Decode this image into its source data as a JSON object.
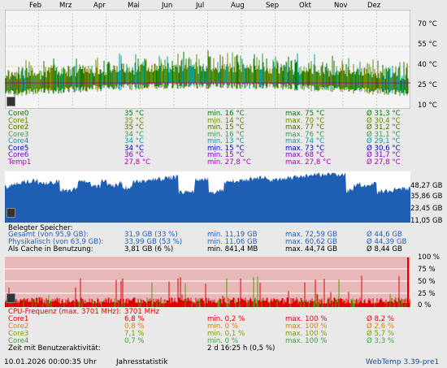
{
  "months": [
    "Feb",
    "Mrz",
    "Apr",
    "Mai",
    "Jun",
    "Jul",
    "Aug",
    "Sep",
    "Okt",
    "Nov",
    "Dez"
  ],
  "temp_axis": [
    "70 °C",
    "55 °C",
    "40 °C",
    "25 °C",
    "10 °C"
  ],
  "temp_rows": [
    {
      "name": "Core0",
      "cur": "35 °C",
      "min": "min. 16 °C",
      "max": "max. 75 °C",
      "avg": "Ø 31,3 °C",
      "color": "#008000"
    },
    {
      "name": "Core1",
      "cur": "35 °C",
      "min": "min. 14 °C",
      "max": "max. 70 °C",
      "avg": "Ø 30,4 °C",
      "color": "#6a8a00"
    },
    {
      "name": "Core2",
      "cur": "35 °C",
      "min": "min. 15 °C",
      "max": "max. 77 °C",
      "avg": "Ø 31,2 °C",
      "color": "#4a7000"
    },
    {
      "name": "Core3",
      "cur": "34 °C",
      "min": "min. 16 °C",
      "max": "max. 76 °C",
      "avg": "Ø 31,1 °C",
      "color": "#30a040"
    },
    {
      "name": "Core4",
      "cur": "34 °C",
      "min": "min. 13 °C",
      "max": "max. 74 °C",
      "avg": "Ø 29,1 °C",
      "color": "#00a0a0"
    },
    {
      "name": "Core5",
      "cur": "34 °C",
      "min": "min. 15 °C",
      "max": "max. 73 °C",
      "avg": "Ø 30,6 °C",
      "color": "#0000c0"
    },
    {
      "name": "Core6",
      "cur": "36 °C",
      "min": "min. 15 °C",
      "max": "max. 68 °C",
      "avg": "Ø 31,7 °C",
      "color": "#8000c0"
    },
    {
      "name": "Temp1",
      "cur": "27,8 °C",
      "min": "min. 27,8 °C",
      "max": "max. 27,8 °C",
      "avg": "Ø 27,8 °C",
      "color": "#b000b0"
    }
  ],
  "mem_axis": [
    "48,27 GB",
    "35,86 GB",
    "23,45 GB",
    "11,05 GB"
  ],
  "mem_header": "Belegter Speicher:",
  "mem_rows": [
    {
      "name": "Gesamt (von 95,9 GB):",
      "cur": "31,9 GB (33 %)",
      "min": "min. 11,19 GB",
      "max": "max. 72,59 GB",
      "avg": "Ø 44,6 GB",
      "color": "#2060c0"
    },
    {
      "name": "Physikalisch (von 63,9 GB):",
      "cur": "33,99 GB (53 %)",
      "min": "min. 11,06 GB",
      "max": "max. 60,62 GB",
      "avg": "Ø 44,39 GB",
      "color": "#2060c0"
    },
    {
      "name": "Als Cache in Benutzung:",
      "cur": "3,81 GB (6 %)",
      "min": "min. 841,4 MB",
      "max": "max. 44,74 GB",
      "avg": "Ø 8,44 GB",
      "color": "#000000"
    }
  ],
  "cpu_axis": [
    "100 %",
    "75 %",
    "50 %",
    "25 %",
    "0 %"
  ],
  "cpu_header": {
    "label": "CPU-Frequenz (max. 3701 MHz):",
    "value": "3701 MHz"
  },
  "cpu_rows": [
    {
      "name": "Core1",
      "cur": "6,8 %",
      "min": "min. 0,2 %",
      "max": "max. 100 %",
      "avg": "Ø 8,2 %",
      "color": "#e00000"
    },
    {
      "name": "Core2",
      "cur": "0,8 %",
      "min": "min. 0 %",
      "max": "max. 100 %",
      "avg": "Ø 2,6 %",
      "color": "#e08000"
    },
    {
      "name": "Core3",
      "cur": "7,1 %",
      "min": "min. 0,1 %",
      "max": "max. 100 %",
      "avg": "Ø 5,7 %",
      "color": "#80a000"
    },
    {
      "name": "Core4",
      "cur": "0,7 %",
      "min": "min. 0 %",
      "max": "max. 100 %",
      "avg": "Ø 3,3 %",
      "color": "#40a040"
    }
  ],
  "activity": {
    "label": "Zeit mit Benutzeraktivität:",
    "value": "2 d 16:25 h (0,5 %)"
  },
  "footer": {
    "timestamp": "10.01.2026 00:00:35 Uhr",
    "mode": "Jahresstatistik",
    "app": "WebTemp 3.39-pre1"
  },
  "colors": {
    "mem_fill": "#1e5fb4",
    "cpu_bg": "#e8b8b8",
    "cpu_line": "#e00000",
    "temp_bg": "#f4f4f4"
  }
}
